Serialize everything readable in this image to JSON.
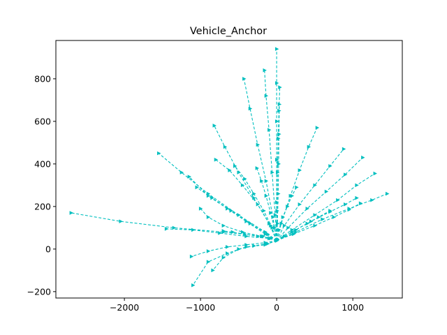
{
  "chart_data": {
    "type": "line",
    "title": "Vehicle_Anchor",
    "xlabel": "",
    "ylabel": "",
    "xlim": [
      -2900,
      1650
    ],
    "ylim": [
      -230,
      980
    ],
    "xticks": [
      -2000,
      -1000,
      0,
      1000
    ],
    "yticks": [
      -200,
      0,
      200,
      400,
      600,
      800
    ],
    "xtick_labels": [
      "−2000",
      "−1000",
      "0",
      "1000"
    ],
    "ytick_labels": [
      "−200",
      "0",
      "200",
      "400",
      "600",
      "800"
    ],
    "grid": false,
    "marker": "triangle-right",
    "linestyle": "dashed",
    "color": "#00bfbf",
    "series": [
      {
        "x": [
          0,
          -180,
          -700,
          -1350,
          -2050,
          -2700
        ],
        "y": [
          40,
          60,
          80,
          100,
          130,
          170
        ]
      },
      {
        "x": [
          0,
          -150,
          -500,
          -900,
          -1250,
          -1550
        ],
        "y": [
          40,
          80,
          160,
          260,
          360,
          450
        ]
      },
      {
        "x": [
          0,
          -100,
          -300,
          -500,
          -680,
          -820
        ],
        "y": [
          40,
          120,
          240,
          360,
          480,
          580
        ]
      },
      {
        "x": [
          0,
          -50,
          -140,
          -250,
          -350,
          -430
        ],
        "y": [
          40,
          150,
          320,
          490,
          660,
          800
        ]
      },
      {
        "x": [
          0,
          -20,
          -60,
          -100,
          -140,
          -160
        ],
        "y": [
          40,
          160,
          360,
          560,
          720,
          840
        ]
      },
      {
        "x": [
          0,
          0,
          0,
          0,
          0,
          0
        ],
        "y": [
          40,
          220,
          420,
          600,
          780,
          940
        ]
      },
      {
        "x": [
          0,
          5,
          10,
          20,
          30,
          40
        ],
        "y": [
          40,
          180,
          360,
          520,
          650,
          760
        ]
      },
      {
        "x": [
          0,
          60,
          180,
          300,
          420,
          530
        ],
        "y": [
          40,
          120,
          250,
          370,
          480,
          570
        ]
      },
      {
        "x": [
          0,
          100,
          300,
          500,
          700,
          880
        ],
        "y": [
          40,
          110,
          210,
          300,
          390,
          470
        ]
      },
      {
        "x": [
          0,
          150,
          400,
          650,
          900,
          1130
        ],
        "y": [
          40,
          100,
          190,
          270,
          350,
          430
        ]
      },
      {
        "x": [
          0,
          200,
          500,
          800,
          1050,
          1290
        ],
        "y": [
          40,
          90,
          160,
          230,
          300,
          355
        ]
      },
      {
        "x": [
          0,
          250,
          600,
          950,
          1250,
          1450
        ],
        "y": [
          40,
          80,
          140,
          190,
          230,
          260
        ]
      },
      {
        "x": [
          0,
          200,
          450,
          700,
          900,
          1050
        ],
        "y": [
          40,
          80,
          130,
          175,
          210,
          240
        ]
      },
      {
        "x": [
          0,
          220,
          500,
          750,
          950,
          1100
        ],
        "y": [
          40,
          70,
          110,
          150,
          185,
          215
        ]
      },
      {
        "x": [
          0,
          -100,
          -400,
          -750,
          -1100,
          -1450
        ],
        "y": [
          40,
          50,
          60,
          75,
          90,
          95
        ]
      },
      {
        "x": [
          0,
          -120,
          -350,
          -600,
          -850,
          -1050
        ],
        "y": [
          40,
          70,
          120,
          180,
          240,
          290
        ]
      },
      {
        "x": [
          0,
          -150,
          -400,
          -650,
          -900,
          -1150
        ],
        "y": [
          40,
          70,
          130,
          190,
          250,
          340
        ]
      },
      {
        "x": [
          0,
          -80,
          -250,
          -450,
          -620,
          -800
        ],
        "y": [
          40,
          110,
          210,
          300,
          370,
          420
        ]
      },
      {
        "x": [
          0,
          -60,
          -170,
          -300,
          -420,
          -550
        ],
        "y": [
          40,
          100,
          180,
          260,
          330,
          390
        ]
      },
      {
        "x": [
          0,
          -150,
          -400,
          -650,
          -900,
          -1100
        ],
        "y": [
          40,
          20,
          10,
          -20,
          -60,
          -170
        ]
      },
      {
        "x": [
          0,
          -150,
          -400,
          -650,
          -900,
          -1120
        ],
        "y": [
          40,
          30,
          20,
          10,
          -10,
          -35
        ]
      },
      {
        "x": [
          0,
          -120,
          -300,
          -500,
          -700,
          -840
        ],
        "y": [
          40,
          25,
          15,
          0,
          -40,
          -100
        ]
      },
      {
        "x": [
          0,
          -200,
          -450,
          -700,
          -900,
          -1000
        ],
        "y": [
          40,
          60,
          80,
          110,
          150,
          190
        ]
      },
      {
        "x": [
          0,
          -80,
          -250,
          -420,
          -580,
          -700
        ],
        "y": [
          40,
          50,
          60,
          70,
          80,
          85
        ]
      },
      {
        "x": [
          0,
          30,
          80,
          140,
          200,
          260
        ],
        "y": [
          40,
          90,
          150,
          200,
          250,
          290
        ]
      },
      {
        "x": [
          0,
          -30,
          -80,
          -140,
          -200,
          -260
        ],
        "y": [
          40,
          100,
          170,
          250,
          320,
          380
        ]
      },
      {
        "x": [
          0,
          10,
          20,
          25,
          30,
          35
        ],
        "y": [
          40,
          120,
          260,
          400,
          540,
          680
        ]
      },
      {
        "x": [
          0,
          100,
          250,
          400,
          550,
          700
        ],
        "y": [
          40,
          60,
          90,
          120,
          150,
          180
        ]
      }
    ]
  }
}
